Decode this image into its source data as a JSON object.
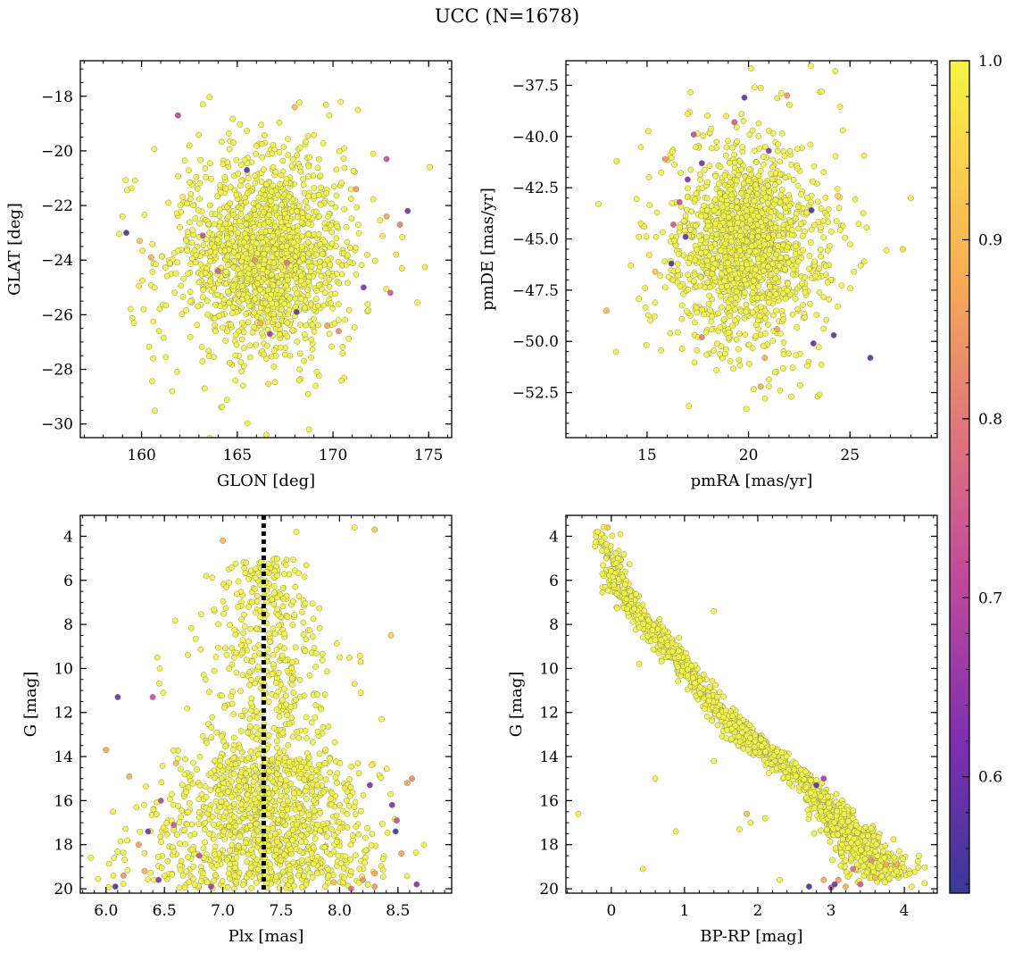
{
  "figure": {
    "title": "UCC (N=1678)",
    "point_fill_default": "#f2f542",
    "point_edge": "#8a8a6a",
    "membership_colormap": "plasma",
    "colormap_stops": [
      "#3b3896",
      "#7d2fb0",
      "#c04a9b",
      "#e0777c",
      "#f5a65a",
      "#fbd24b",
      "#f5f542"
    ]
  },
  "chart_data": [
    {
      "id": "glon-glat",
      "type": "scatter",
      "xlabel": "GLON [deg]",
      "ylabel": "GLAT [deg]",
      "xlim": [
        156.8,
        176.2
      ],
      "ylim": [
        -30.5,
        -16.7
      ],
      "y_inverted": false,
      "xticks": [
        160,
        165,
        170,
        175
      ],
      "yticks": [
        -18,
        -20,
        -22,
        -24,
        -26,
        -28,
        -30
      ],
      "cluster": {
        "center": [
          166.5,
          -23.8
        ],
        "spread": [
          1.9,
          1.6
        ],
        "count": 1500
      },
      "outliers": [
        [
          159.2,
          -23.0,
          0.55
        ],
        [
          161.9,
          -18.7,
          0.68
        ],
        [
          165.5,
          -20.7,
          0.58
        ],
        [
          168.0,
          -18.4,
          0.88
        ],
        [
          172.8,
          -20.3,
          0.7
        ],
        [
          173.9,
          -22.2,
          0.6
        ],
        [
          173.0,
          -25.2,
          0.72
        ],
        [
          171.6,
          -25.0,
          0.62
        ],
        [
          168.1,
          -25.9,
          0.58
        ],
        [
          166.7,
          -26.7,
          0.65
        ],
        [
          164.0,
          -24.4,
          0.72
        ],
        [
          171.2,
          -21.4,
          0.82
        ],
        [
          173.5,
          -22.7,
          0.78
        ],
        [
          172.8,
          -22.4,
          0.85
        ],
        [
          159.9,
          -23.3,
          0.9
        ],
        [
          160.5,
          -23.9,
          0.86
        ],
        [
          170.3,
          -26.6,
          0.8
        ],
        [
          166.2,
          -26.3,
          0.86
        ],
        [
          165.9,
          -24.0,
          0.8
        ],
        [
          167.6,
          -24.1,
          0.76
        ],
        [
          163.2,
          -23.1,
          0.7
        ],
        [
          169.7,
          -26.4,
          0.84
        ]
      ],
      "sparse": [
        [
          163.2,
          -18.3
        ],
        [
          169.8,
          -18.7
        ],
        [
          171.3,
          -18.5
        ],
        [
          161.6,
          -28.8
        ],
        [
          163.3,
          -28.7
        ],
        [
          168.7,
          -28.9
        ],
        [
          165.3,
          -28.6
        ],
        [
          159.0,
          -22.4
        ],
        [
          159.6,
          -26.3
        ],
        [
          160.1,
          -25.8
        ],
        [
          160.6,
          -27.6
        ],
        [
          173.6,
          -24.3
        ],
        [
          173.3,
          -23.8
        ],
        [
          162.5,
          -19.8
        ],
        [
          164.8,
          -19.7
        ]
      ]
    },
    {
      "id": "pmra-pmde",
      "type": "scatter",
      "xlabel": "pmRA [mas/yr]",
      "ylabel": "pmDE [mas/yr]",
      "xlim": [
        11.0,
        29.3
      ],
      "ylim": [
        -54.7,
        -36.3
      ],
      "y_inverted": false,
      "xticks": [
        15,
        20,
        25
      ],
      "yticks": [
        -37.5,
        -40.0,
        -42.5,
        -45.0,
        -47.5,
        -50.0,
        -52.5
      ],
      "cluster": {
        "center": [
          19.9,
          -45.3
        ],
        "spread": [
          1.6,
          2.0
        ],
        "count": 1500
      },
      "outliers": [
        [
          19.8,
          -38.1,
          0.58
        ],
        [
          21.9,
          -38.0,
          0.82
        ],
        [
          26.0,
          -50.8,
          0.58
        ],
        [
          24.2,
          -49.7,
          0.58
        ],
        [
          23.2,
          -50.1,
          0.58
        ],
        [
          16.2,
          -46.2,
          0.55
        ],
        [
          15.9,
          -41.1,
          0.82
        ],
        [
          13.0,
          -48.5,
          0.88
        ],
        [
          15.4,
          -46.6,
          0.9
        ],
        [
          16.9,
          -44.9,
          0.58
        ],
        [
          16.3,
          -44.3,
          0.72
        ],
        [
          16.6,
          -43.2,
          0.7
        ],
        [
          17.0,
          -42.1,
          0.62
        ],
        [
          17.7,
          -41.3,
          0.6
        ],
        [
          17.3,
          -39.9,
          0.7
        ],
        [
          23.1,
          -43.6,
          0.55
        ],
        [
          21.0,
          -40.7,
          0.62
        ],
        [
          17.7,
          -49.8,
          0.78
        ],
        [
          20.8,
          -50.8,
          0.86
        ],
        [
          21.4,
          -49.4,
          0.84
        ],
        [
          19.3,
          -39.3,
          0.72
        ],
        [
          20.6,
          -52.2,
          0.86
        ],
        [
          24.4,
          -42.9,
          0.92
        ],
        [
          27.6,
          -45.5,
          0.94
        ]
      ],
      "sparse": [
        [
          12.6,
          -43.3
        ],
        [
          13.5,
          -41.2
        ],
        [
          14.2,
          -46.3
        ],
        [
          14.6,
          -44.9
        ],
        [
          14.9,
          -47.4
        ],
        [
          23.6,
          -37.8
        ],
        [
          19.9,
          -53.3
        ],
        [
          22.1,
          -52.7
        ],
        [
          23.5,
          -52.6
        ],
        [
          28.0,
          -43.0
        ],
        [
          25.7,
          -46.1
        ],
        [
          25.2,
          -46.6
        ],
        [
          24.4,
          -48.3
        ],
        [
          17.0,
          -38.9
        ],
        [
          18.9,
          -39.0
        ],
        [
          20.2,
          -39.7
        ]
      ]
    },
    {
      "id": "plx-g",
      "type": "scatter",
      "xlabel": "Plx [mas]",
      "ylabel": "G [mag]",
      "xlim": [
        5.78,
        8.96
      ],
      "ylim": [
        20.2,
        3.05
      ],
      "y_inverted": true,
      "xticks": [
        6.0,
        6.5,
        7.0,
        7.5,
        8.0,
        8.5
      ],
      "yticks": [
        4,
        6,
        8,
        10,
        12,
        14,
        16,
        18,
        20
      ],
      "reference_line": {
        "x": 7.35,
        "style": "dotted"
      },
      "cluster": {
        "center_x": 7.37,
        "spread_x": 0.33,
        "g_range": [
          5.0,
          20.0
        ],
        "count": 1500
      },
      "outliers": [
        [
          6.1,
          11.3,
          0.58
        ],
        [
          6.4,
          11.3,
          0.7
        ],
        [
          6.08,
          19.9,
          0.55
        ],
        [
          6.0,
          13.7,
          0.84
        ],
        [
          6.2,
          14.9,
          0.86
        ],
        [
          6.47,
          16.0,
          0.68
        ],
        [
          6.36,
          17.4,
          0.6
        ],
        [
          6.58,
          17.1,
          0.72
        ],
        [
          6.8,
          18.5,
          0.7
        ],
        [
          6.45,
          19.6,
          0.62
        ],
        [
          6.9,
          19.9,
          0.65
        ],
        [
          6.28,
          18.0,
          0.84
        ],
        [
          6.15,
          19.4,
          0.82
        ],
        [
          6.33,
          19.2,
          0.86
        ],
        [
          8.26,
          15.3,
          0.62
        ],
        [
          8.45,
          16.2,
          0.62
        ],
        [
          8.49,
          16.9,
          0.7
        ],
        [
          8.48,
          17.4,
          0.55
        ],
        [
          8.62,
          15.0,
          0.8
        ],
        [
          8.58,
          15.2,
          0.84
        ],
        [
          8.66,
          19.8,
          0.62
        ],
        [
          8.53,
          18.4,
          0.84
        ],
        [
          8.1,
          20.0,
          0.75
        ],
        [
          7.0,
          4.2,
          0.88
        ],
        [
          8.3,
          3.7,
          0.9
        ],
        [
          8.44,
          8.5,
          0.92
        ],
        [
          8.3,
          19.3,
          0.84
        ],
        [
          8.3,
          19.9,
          0.82
        ],
        [
          6.6,
          14.3,
          0.88
        ],
        [
          7.95,
          19.7,
          0.88
        ],
        [
          8.2,
          19.6,
          0.8
        ]
      ],
      "sparse": [
        [
          7.63,
          3.8
        ],
        [
          8.13,
          3.6
        ],
        [
          7.2,
          5.2
        ],
        [
          6.44,
          9.5
        ],
        [
          6.46,
          10.0
        ],
        [
          6.49,
          11.1
        ],
        [
          8.13,
          10.7
        ],
        [
          8.18,
          9.7
        ],
        [
          8.36,
          12.3
        ],
        [
          6.06,
          16.5
        ],
        [
          6.26,
          16.3
        ],
        [
          6.07,
          18.6
        ]
      ]
    },
    {
      "id": "bprp-g",
      "type": "scatter",
      "xlabel": "BP-RP [mag]",
      "ylabel": "G [mag]",
      "xlim": [
        -0.62,
        4.45
      ],
      "ylim": [
        20.2,
        3.05
      ],
      "y_inverted": true,
      "xticks": [
        0,
        1,
        2,
        3,
        4
      ],
      "yticks": [
        4,
        6,
        8,
        10,
        12,
        14,
        16,
        18,
        20
      ],
      "sequence": [
        [
          -0.1,
          3.6
        ],
        [
          0.05,
          6.0
        ],
        [
          0.35,
          7.5
        ],
        [
          0.9,
          9.5
        ],
        [
          1.5,
          12.0
        ],
        [
          2.0,
          13.5
        ],
        [
          2.6,
          15.0
        ],
        [
          3.0,
          16.5
        ],
        [
          3.4,
          18.0
        ],
        [
          3.8,
          19.5
        ]
      ],
      "cluster": {
        "count": 1540
      },
      "outliers": [
        [
          -0.05,
          3.6,
          0.9
        ],
        [
          2.7,
          19.9,
          0.55
        ],
        [
          3.0,
          19.95,
          0.68
        ],
        [
          3.05,
          19.8,
          0.6
        ],
        [
          2.8,
          15.3,
          0.58
        ],
        [
          2.9,
          15.0,
          0.66
        ],
        [
          3.3,
          19.1,
          0.75
        ],
        [
          3.4,
          19.8,
          0.72
        ],
        [
          3.55,
          18.7,
          0.8
        ],
        [
          1.85,
          16.6,
          0.88
        ],
        [
          2.9,
          19.6,
          0.85
        ],
        [
          3.1,
          19.6,
          0.82
        ],
        [
          3.2,
          19.9,
          0.86
        ],
        [
          3.6,
          19.5,
          0.88
        ],
        [
          3.75,
          18.9,
          0.84
        ],
        [
          3.9,
          18.9,
          0.86
        ]
      ],
      "sparse": [
        [
          -0.45,
          16.6
        ],
        [
          0.43,
          19.1
        ],
        [
          0.88,
          17.4
        ],
        [
          1.4,
          7.4
        ],
        [
          1.4,
          14.2
        ],
        [
          1.75,
          17.3
        ],
        [
          1.9,
          17.0
        ],
        [
          2.1,
          16.8
        ],
        [
          2.3,
          19.6
        ],
        [
          0.38,
          9.8
        ],
        [
          4.2,
          18.5
        ],
        [
          4.1,
          19.9
        ],
        [
          0.6,
          15.0
        ]
      ]
    }
  ],
  "colorbar": {
    "range": [
      0.535,
      1.0
    ],
    "ticks": [
      0.6,
      0.7,
      0.8,
      0.9,
      1.0
    ],
    "tick_labels": [
      "0.6",
      "0.7",
      "0.8",
      "0.9",
      "1.0"
    ],
    "label": ""
  }
}
